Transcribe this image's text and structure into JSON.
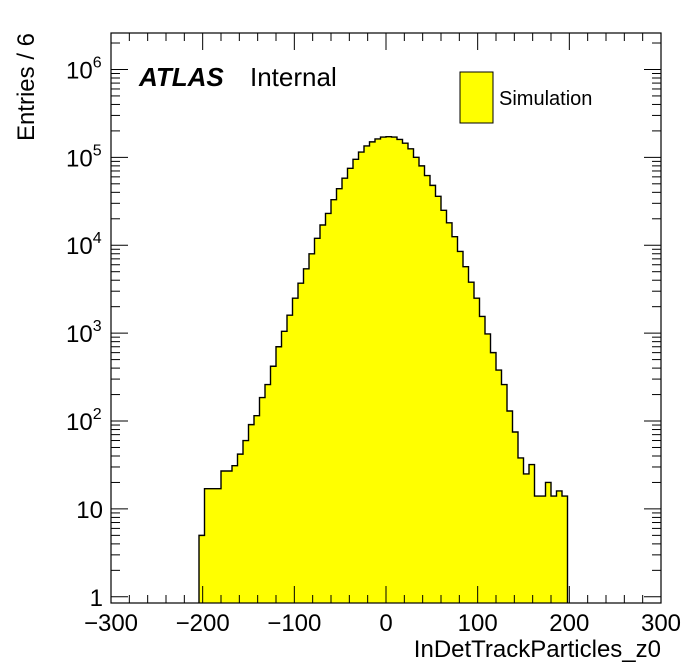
{
  "chart_data": {
    "type": "bar",
    "histogram": true,
    "xlabel": "InDetTrackParticles_z0",
    "ylabel": "Entries / 6",
    "xlim": [
      -300,
      300
    ],
    "ylim": [
      0.85,
      2600000
    ],
    "yscale": "log",
    "xticks": [
      -300,
      -200,
      -100,
      0,
      100,
      200,
      300
    ],
    "xtick_labels": [
      "−300",
      "−200",
      "−100",
      "0",
      "100",
      "200",
      "300"
    ],
    "yticks": [
      {
        "value": 1,
        "base": "1",
        "exp": ""
      },
      {
        "value": 10,
        "base": "10",
        "exp": ""
      },
      {
        "value": 100,
        "base": "10",
        "exp": "2"
      },
      {
        "value": 1000,
        "base": "10",
        "exp": "3"
      },
      {
        "value": 10000,
        "base": "10",
        "exp": "4"
      },
      {
        "value": 100000,
        "base": "10",
        "exp": "5"
      },
      {
        "value": 1000000,
        "base": "10",
        "exp": "6"
      }
    ],
    "bin_width": 6,
    "grid": false,
    "legend_position": "top-right",
    "series": [
      {
        "name": "Simulation",
        "color": "#ffff00",
        "x": [
          -204,
          -198,
          -192,
          -186,
          -180,
          -174,
          -168,
          -162,
          -156,
          -150,
          -144,
          -138,
          -132,
          -126,
          -120,
          -114,
          -108,
          -102,
          -96,
          -90,
          -84,
          -78,
          -72,
          -66,
          -60,
          -54,
          -48,
          -42,
          -36,
          -30,
          -24,
          -18,
          -12,
          -6,
          0,
          6,
          12,
          18,
          24,
          30,
          36,
          42,
          48,
          54,
          60,
          66,
          72,
          78,
          84,
          90,
          96,
          102,
          108,
          114,
          120,
          126,
          132,
          138,
          144,
          150,
          156,
          162,
          168,
          174,
          180,
          186,
          192
        ],
        "values": [
          5,
          17,
          17,
          17,
          27,
          27,
          31,
          42,
          60,
          91,
          115,
          185,
          260,
          420,
          700,
          1050,
          1600,
          2500,
          3700,
          5400,
          8000,
          12000,
          17000,
          23000,
          33000,
          44000,
          58000,
          75000,
          95000,
          115000,
          135000,
          150000,
          162000,
          170000,
          172000,
          170000,
          160000,
          145000,
          125000,
          100000,
          80000,
          62000,
          48000,
          36000,
          25000,
          18000,
          12500,
          8500,
          5700,
          3800,
          2500,
          1550,
          980,
          600,
          380,
          260,
          130,
          75,
          38,
          25,
          32,
          14,
          14,
          20,
          14,
          16,
          14
        ]
      }
    ]
  },
  "annotations": {
    "atlas": "ATLAS",
    "internal": "Internal"
  },
  "legend": {
    "label": "Simulation"
  },
  "colors": {
    "fill": "#ffff00",
    "line": "#000000"
  }
}
